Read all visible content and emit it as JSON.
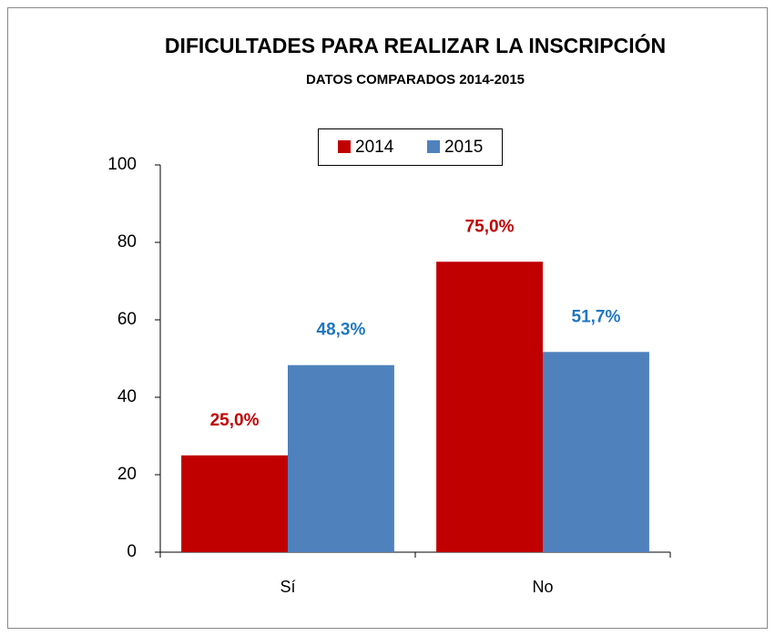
{
  "chart_data": {
    "type": "bar",
    "title": "DIFICULTADES PARA REALIZAR LA INSCRIPCIÓN",
    "subtitle": "DATOS COMPARADOS 2014-2015",
    "categories": [
      "Sí",
      "No"
    ],
    "series": [
      {
        "name": "2014",
        "color": "#c00000",
        "label_color": "#c00000",
        "values": [
          25.0,
          75.0
        ],
        "value_labels": [
          "25,0%",
          "75,0%"
        ]
      },
      {
        "name": "2015",
        "color": "#4f81bd",
        "label_color": "#1f77c0",
        "values": [
          48.3,
          51.7
        ],
        "value_labels": [
          "48,3%",
          "51,7%"
        ]
      }
    ],
    "ylim": [
      0,
      100
    ],
    "yticks": [
      0,
      20,
      40,
      60,
      80,
      100
    ],
    "grid": false,
    "legend": "top"
  }
}
